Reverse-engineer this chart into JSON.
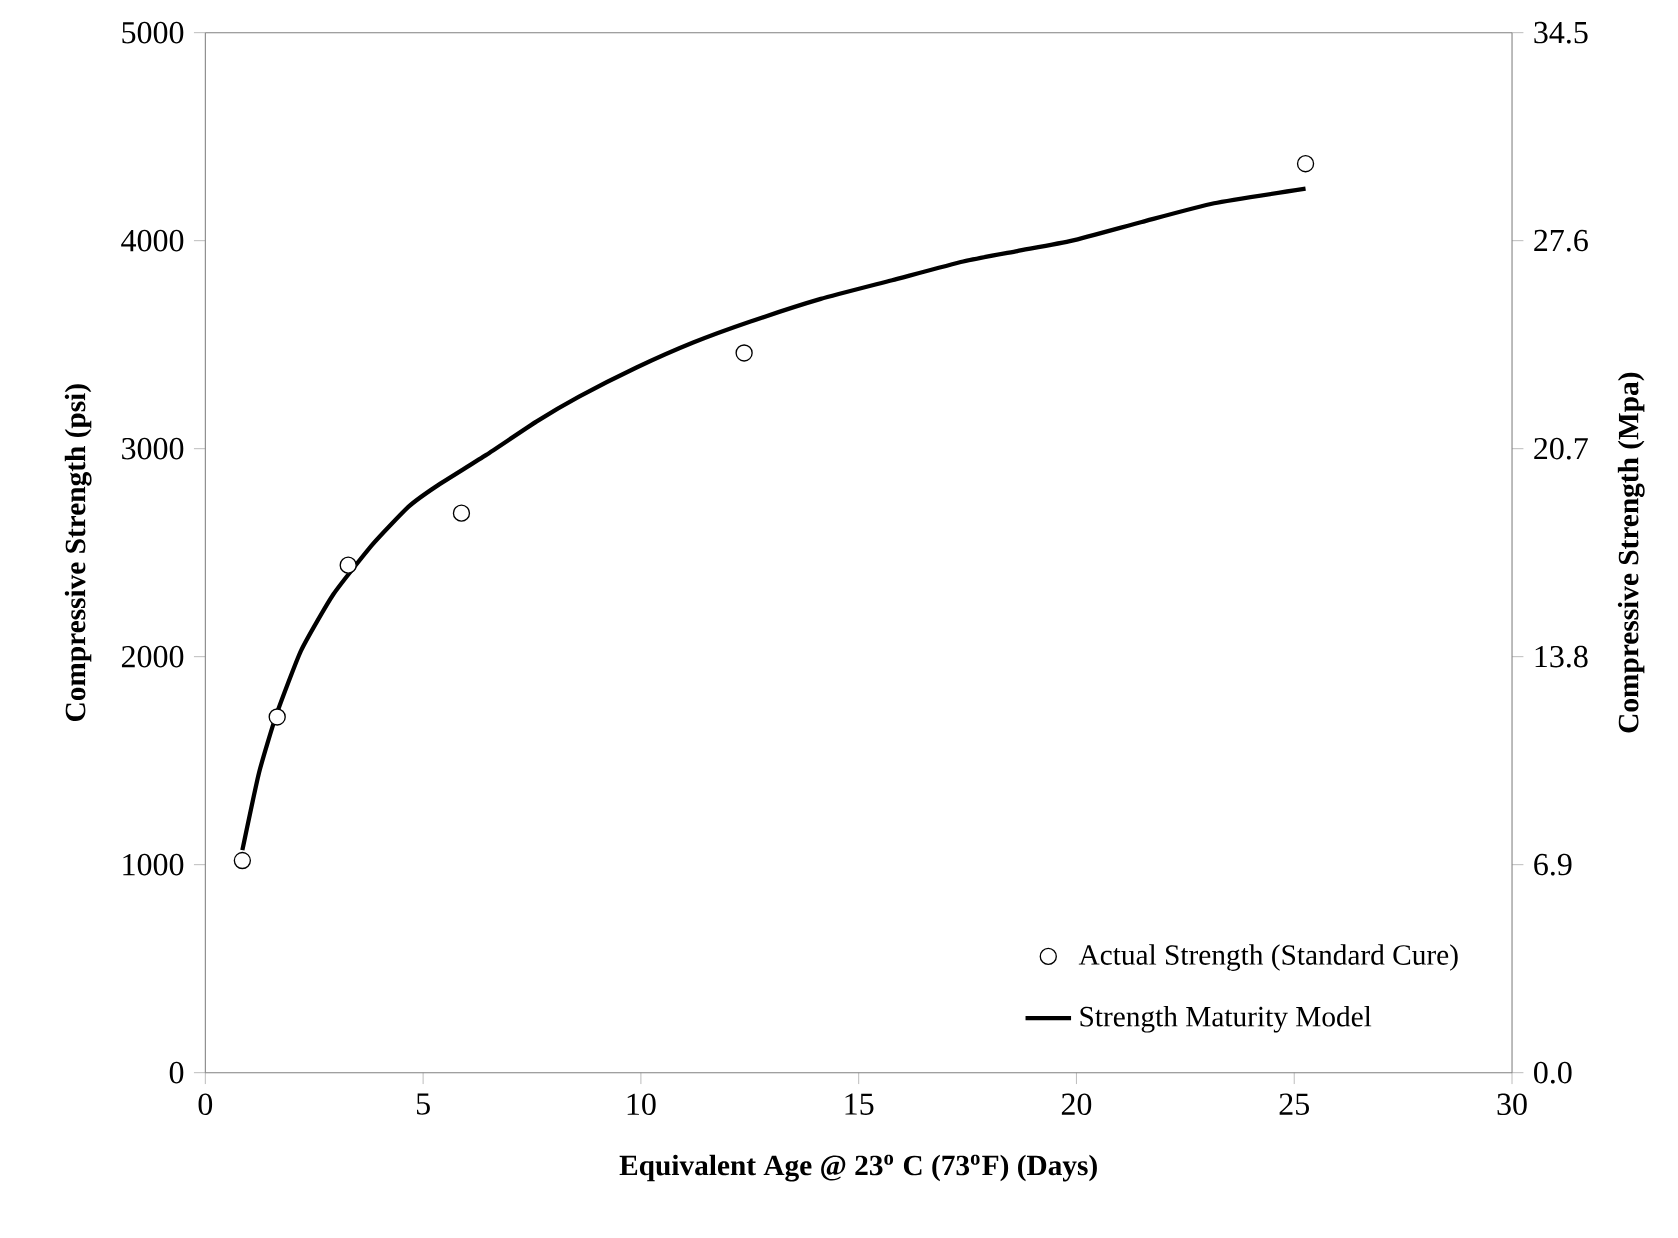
{
  "chart_data": {
    "type": "scatter",
    "xlabel": "Equivalent Age @ 23$^{o}$ C (73$^{o}$F)  (Days)",
    "ylabel": "Compressive Strength (psi)",
    "y2label": "Compressive Strength (Mpa)",
    "xlim": [
      0,
      30
    ],
    "xticks": [
      0,
      5,
      10,
      15,
      20,
      25,
      30
    ],
    "ylim": [
      0,
      5000
    ],
    "yticks": [
      0,
      1000,
      2000,
      3000,
      4000,
      5000
    ],
    "y2lim": [
      0,
      34.5
    ],
    "y2ticks": [
      {
        "value": 0,
        "label": "0.0"
      },
      6.9,
      13.8,
      20.7,
      27.6,
      34.5
    ],
    "legend": "bottom right",
    "series": [
      {
        "name": "Actual Strength (Standard Cure)",
        "marker": "circle",
        "color": "#000000",
        "x": [
          0.85,
          1.65,
          3.28,
          5.88,
          12.37,
          25.26
        ],
        "values": [
          1020,
          1710,
          2440,
          2690,
          3460,
          4370
        ]
      },
      {
        "name": "Strength Maturity Model",
        "type": "line",
        "marker": "none",
        "line_style": "solid",
        "color": "#000000",
        "x": [
          0.85,
          1.23,
          1.63,
          2.2,
          2.94,
          3.84,
          4.66,
          5.31,
          6.45,
          7.6,
          8.58,
          9.9,
          11.2,
          12.5,
          14.13,
          15.77,
          17.4,
          18.64,
          19.9,
          21.5,
          23.16,
          25.26
        ],
        "values": [
          1070,
          1440,
          1720,
          2030,
          2300,
          2540,
          2720,
          2820,
          2970,
          3130,
          3250,
          3390,
          3510,
          3610,
          3720,
          3810,
          3900,
          3950,
          4000,
          4090,
          4180,
          4250
        ]
      }
    ]
  }
}
